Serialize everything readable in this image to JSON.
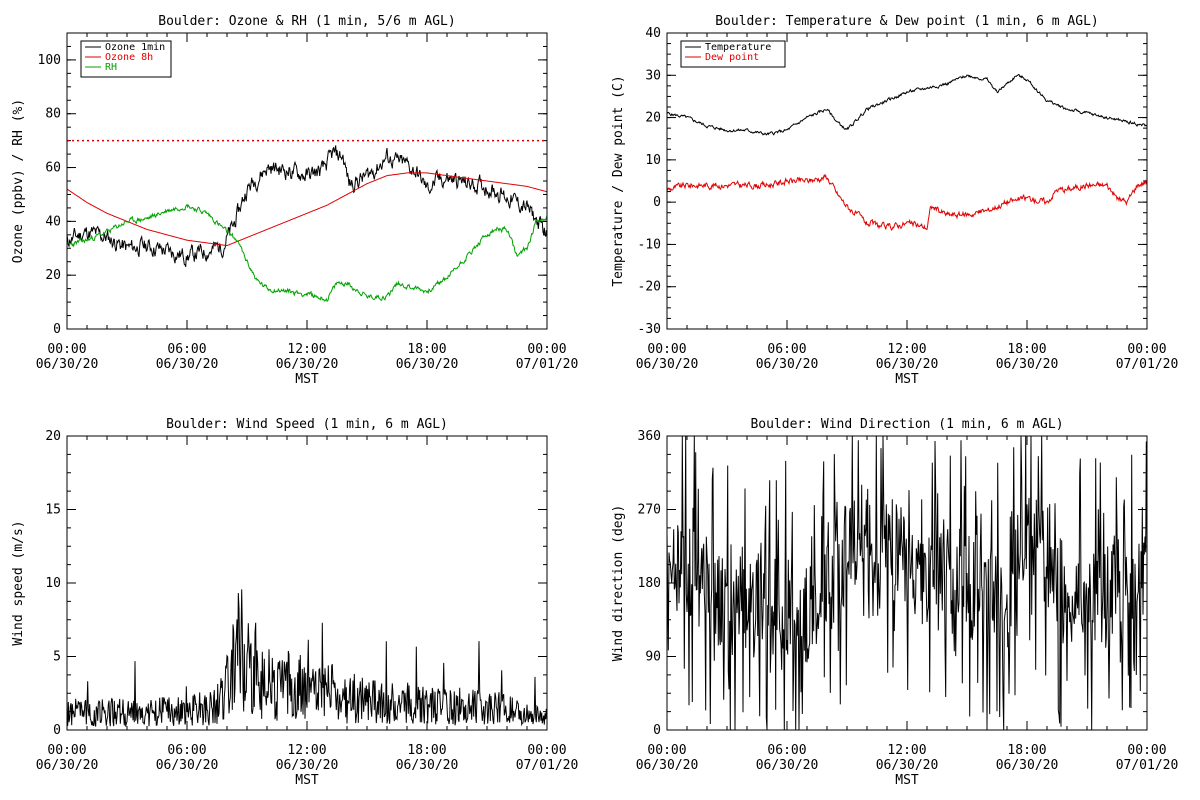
{
  "chart_data": [
    {
      "id": "ozone-rh",
      "type": "line",
      "title": "Boulder: Ozone & RH (1 min, 5/6 m AGL)",
      "ylabel": "Ozone (ppbv) / RH (%)",
      "xlabel": "MST",
      "ylim": [
        0,
        110
      ],
      "yticks": [
        0,
        20,
        40,
        60,
        80,
        100
      ],
      "xlim": [
        0,
        24
      ],
      "xticks": [
        {
          "x": 0,
          "time": "00:00",
          "date": "06/30/20"
        },
        {
          "x": 6,
          "time": "06:00",
          "date": "06/30/20"
        },
        {
          "x": 12,
          "time": "12:00",
          "date": "06/30/20"
        },
        {
          "x": 18,
          "time": "18:00",
          "date": "06/30/20"
        },
        {
          "x": 24,
          "time": "00:00",
          "date": "07/01/20"
        }
      ],
      "legend_position": "top-left",
      "reference_lines": [
        {
          "y": 70,
          "color": "#e00000",
          "style": "dotted"
        }
      ],
      "series": [
        {
          "name": "Ozone 1min",
          "color": "#000000",
          "noise": 2.5,
          "seed": 11,
          "x": [
            0,
            1,
            2,
            3,
            4,
            5,
            6,
            7,
            7.8,
            8.3,
            9,
            10,
            11,
            12,
            12.8,
            13.3,
            13.8,
            14.1,
            14.8,
            15.5,
            16,
            16.5,
            17,
            17.5,
            18,
            18.5,
            19,
            20,
            21,
            22,
            23,
            23.5,
            24
          ],
          "y": [
            33,
            36,
            34,
            30,
            31,
            29,
            27,
            29,
            31,
            38,
            52,
            60,
            59,
            57,
            59,
            65,
            64,
            54,
            56,
            60,
            64,
            62,
            61,
            58,
            52,
            55,
            56,
            54,
            53,
            49,
            45,
            40,
            35
          ]
        },
        {
          "name": "Ozone 8h",
          "color": "#e00000",
          "noise": 0,
          "seed": 0,
          "x": [
            0,
            1,
            2,
            3,
            4,
            5,
            6,
            7,
            8,
            9,
            10,
            11,
            12,
            13,
            14,
            15,
            16,
            17,
            18,
            19,
            20,
            21,
            22,
            23,
            24
          ],
          "y": [
            52,
            47,
            43,
            40,
            37,
            35,
            33,
            32,
            31,
            34,
            37,
            40,
            43,
            46,
            50,
            54,
            57,
            58,
            58,
            57,
            56,
            55,
            54,
            53,
            51
          ]
        },
        {
          "name": "RH",
          "color": "#00a000",
          "noise": 0.8,
          "seed": 23,
          "x": [
            0,
            1,
            2,
            3,
            4,
            5,
            6,
            7,
            8,
            8.5,
            9,
            9.5,
            10,
            11,
            12,
            13,
            13.5,
            14,
            15,
            16,
            16.5,
            17,
            18,
            19,
            20,
            21,
            21.5,
            22,
            22.5,
            23,
            23.5,
            24
          ],
          "y": [
            31,
            33,
            36,
            40,
            41,
            44,
            46,
            43,
            36,
            33,
            25,
            18,
            15,
            14,
            13,
            11,
            17,
            17,
            12,
            12,
            17,
            16,
            14,
            19,
            27,
            35,
            37,
            37,
            27,
            30,
            41,
            41
          ]
        }
      ]
    },
    {
      "id": "temp-dew",
      "type": "line",
      "title": "Boulder: Temperature & Dew point (1 min, 6 m AGL)",
      "ylabel": "Temperature / Dew point (C)",
      "xlabel": "MST",
      "ylim": [
        -30,
        40
      ],
      "yticks": [
        -30,
        -20,
        -10,
        0,
        10,
        20,
        30,
        40
      ],
      "xlim": [
        0,
        24
      ],
      "xticks": [
        {
          "x": 0,
          "time": "00:00",
          "date": "06/30/20"
        },
        {
          "x": 6,
          "time": "06:00",
          "date": "06/30/20"
        },
        {
          "x": 12,
          "time": "12:00",
          "date": "06/30/20"
        },
        {
          "x": 18,
          "time": "18:00",
          "date": "06/30/20"
        },
        {
          "x": 24,
          "time": "00:00",
          "date": "07/01/20"
        }
      ],
      "legend_position": "top-left",
      "series": [
        {
          "name": "Temperature",
          "color": "#000000",
          "noise": 0.3,
          "seed": 5,
          "x": [
            0,
            1,
            2,
            3,
            4,
            5,
            6,
            7,
            8,
            8.5,
            9,
            10,
            11,
            12,
            13,
            14,
            15,
            16,
            16.5,
            17,
            17.5,
            18,
            19,
            20,
            21,
            22,
            23,
            24
          ],
          "y": [
            21,
            20,
            18,
            17,
            17,
            16,
            17,
            20,
            22,
            19,
            17,
            22,
            24,
            26,
            27,
            28,
            30,
            29,
            26,
            28,
            30,
            29,
            24,
            22,
            21,
            20,
            19,
            18
          ]
        },
        {
          "name": "Dew point",
          "color": "#e00000",
          "noise": 0.6,
          "seed": 9,
          "x": [
            0,
            1,
            2,
            3,
            4,
            5,
            6,
            7,
            8,
            8.5,
            9,
            10,
            11,
            12,
            13,
            13.2,
            14,
            15,
            16,
            17,
            18,
            19,
            19.5,
            20,
            21,
            22,
            22.5,
            23,
            23.5,
            24
          ],
          "y": [
            3,
            4,
            4,
            4,
            4,
            4,
            5,
            5,
            6,
            2,
            -1,
            -5,
            -6,
            -5,
            -6,
            -1,
            -3,
            -3,
            -2,
            0,
            1,
            0,
            3,
            3,
            4,
            4,
            1,
            0,
            4,
            5
          ]
        }
      ]
    },
    {
      "id": "wind-speed",
      "type": "line",
      "title": "Boulder: Wind Speed (1 min, 6 m AGL)",
      "ylabel": "Wind speed (m/s)",
      "xlabel": "MST",
      "ylim": [
        0,
        20
      ],
      "yticks": [
        0,
        5,
        10,
        15,
        20
      ],
      "xlim": [
        0,
        24
      ],
      "xticks": [
        {
          "x": 0,
          "time": "00:00",
          "date": "06/30/20"
        },
        {
          "x": 6,
          "time": "06:00",
          "date": "06/30/20"
        },
        {
          "x": 12,
          "time": "12:00",
          "date": "06/30/20"
        },
        {
          "x": 18,
          "time": "18:00",
          "date": "06/30/20"
        },
        {
          "x": 24,
          "time": "00:00",
          "date": "07/01/20"
        }
      ],
      "series": [
        {
          "name": "",
          "color": "#000000",
          "noise": 1.3,
          "seed": 31,
          "floor": 0,
          "x": [
            0,
            2,
            4,
            6,
            7.5,
            8.2,
            8.7,
            9.2,
            10,
            11,
            12,
            13,
            14,
            15,
            16,
            17,
            18,
            19,
            20,
            21,
            22,
            23,
            24
          ],
          "y": [
            1.2,
            1.2,
            1.2,
            1.3,
            1.6,
            3.5,
            6.5,
            4.2,
            3.2,
            3.0,
            2.8,
            2.5,
            2.2,
            2.0,
            1.8,
            1.8,
            1.7,
            1.6,
            1.6,
            1.5,
            1.4,
            1.0,
            1.0
          ]
        }
      ]
    },
    {
      "id": "wind-direction",
      "type": "line",
      "title": "Boulder: Wind Direction (1 min, 6 m AGL)",
      "ylabel": "Wind direction (deg)",
      "xlabel": "MST",
      "ylim": [
        0,
        360
      ],
      "yticks": [
        0,
        90,
        180,
        270,
        360
      ],
      "xlim": [
        0,
        24
      ],
      "xticks": [
        {
          "x": 0,
          "time": "00:00",
          "date": "06/30/20"
        },
        {
          "x": 6,
          "time": "06:00",
          "date": "06/30/20"
        },
        {
          "x": 12,
          "time": "12:00",
          "date": "06/30/20"
        },
        {
          "x": 18,
          "time": "18:00",
          "date": "06/30/20"
        },
        {
          "x": 24,
          "time": "00:00",
          "date": "07/01/20"
        }
      ],
      "series": [
        {
          "name": "",
          "color": "#000000",
          "noise": 0,
          "seed": 47,
          "spread": 60,
          "x": [
            0,
            1,
            2,
            3,
            4,
            5,
            6,
            7,
            8,
            9,
            10,
            11,
            12,
            13,
            14,
            15,
            16,
            17,
            18,
            19,
            20,
            21,
            22,
            23,
            24
          ],
          "y": [
            190,
            200,
            175,
            150,
            140,
            160,
            150,
            140,
            170,
            220,
            240,
            220,
            210,
            180,
            200,
            190,
            170,
            150,
            260,
            200,
            170,
            160,
            170,
            190,
            180
          ]
        }
      ]
    }
  ]
}
